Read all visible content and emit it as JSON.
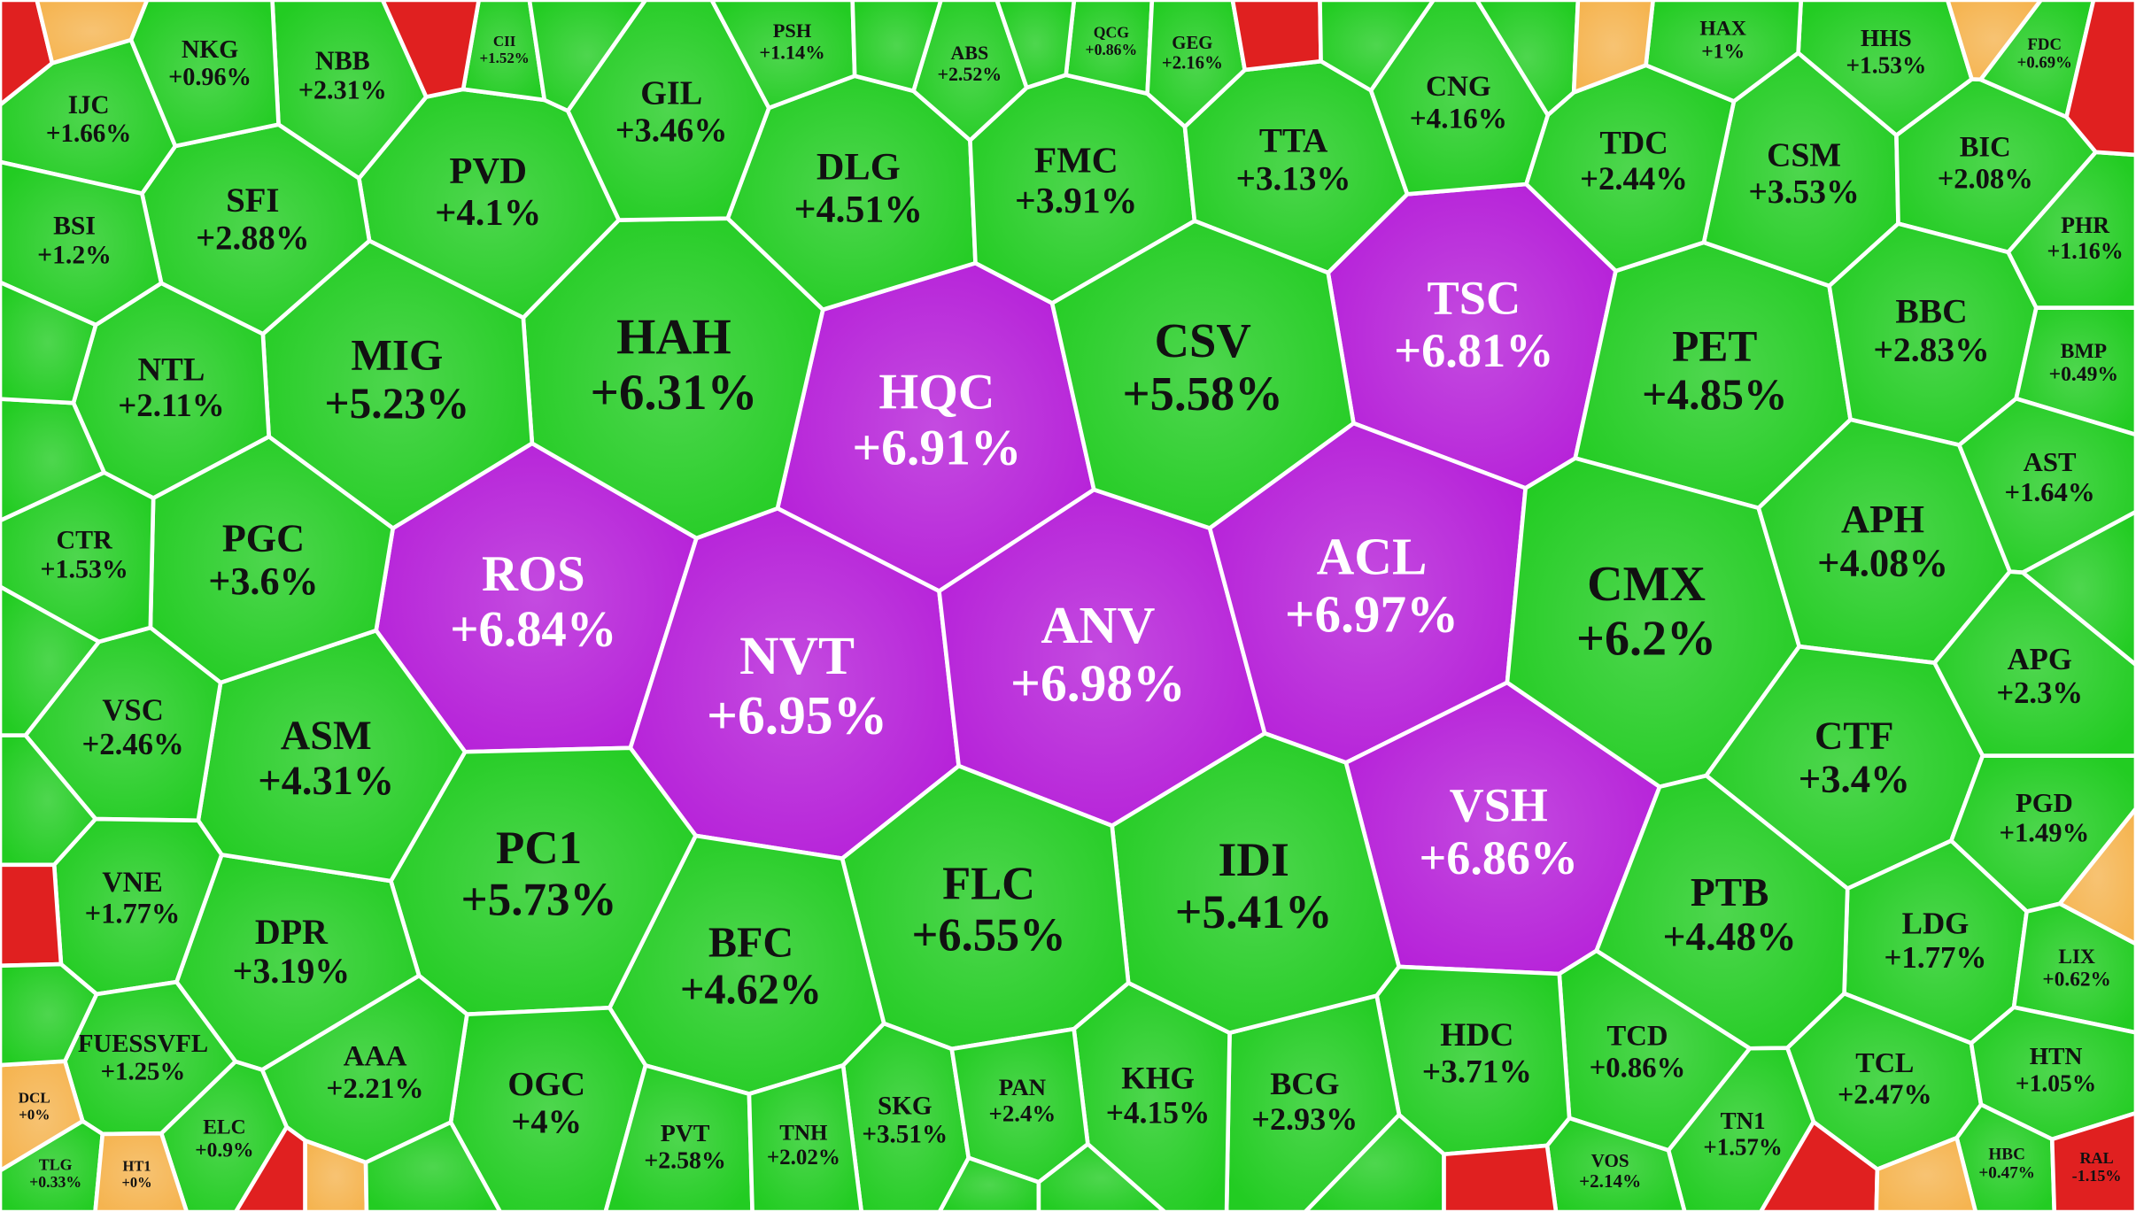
{
  "cells": [
    {
      "label": "HQC",
      "change": "+6.91%",
      "color": "#b51ed8"
    },
    {
      "label": "TSC",
      "change": "+6.81%",
      "color": "#b51ed8"
    },
    {
      "label": "ROS",
      "change": "+6.84%",
      "color": "#b51ed8"
    },
    {
      "label": "NVT",
      "change": "+6.95%",
      "color": "#b51ed8"
    },
    {
      "label": "ANV",
      "change": "+6.98%",
      "color": "#b51ed8"
    },
    {
      "label": "ACL",
      "change": "+6.97%",
      "color": "#b51ed8"
    },
    {
      "label": "VSH",
      "change": "+6.86%",
      "color": "#b51ed8"
    },
    {
      "label": "HAH",
      "change": "+6.31%",
      "color": "#22cc22"
    },
    {
      "label": "MIG",
      "change": "+5.23%",
      "color": "#22cc22"
    },
    {
      "label": "PVD",
      "change": "+4.1%",
      "color": "#22cc22"
    },
    {
      "label": "DLG",
      "change": "+4.51%",
      "color": "#22cc22"
    },
    {
      "label": "FMC",
      "change": "+3.91%",
      "color": "#22cc22"
    },
    {
      "label": "TTA",
      "change": "+3.13%",
      "color": "#22cc22"
    },
    {
      "label": "GIL",
      "change": "+3.46%",
      "color": "#22cc22"
    },
    {
      "label": "NBB",
      "change": "+2.31%",
      "color": "#22cc22"
    },
    {
      "label": "CSV",
      "change": "+5.58%",
      "color": "#22cc22"
    },
    {
      "label": "PET",
      "change": "+4.85%",
      "color": "#22cc22"
    },
    {
      "label": "CSM",
      "change": "+3.53%",
      "color": "#22cc22"
    },
    {
      "label": "TDC",
      "change": "+2.44%",
      "color": "#22cc22"
    },
    {
      "label": "CNG",
      "change": "+4.16%",
      "color": "#22cc22"
    },
    {
      "label": "BIC",
      "change": "+2.08%",
      "color": "#22cc22"
    },
    {
      "label": "HHS",
      "change": "+1.53%",
      "color": "#22cc22"
    },
    {
      "label": "FDC",
      "change": "+0.69%",
      "color": "#22cc22"
    },
    {
      "label": "HAX",
      "change": "+1%",
      "color": "#22cc22"
    },
    {
      "label": "BBC",
      "change": "+2.83%",
      "color": "#22cc22"
    },
    {
      "label": "PHR",
      "change": "+1.16%",
      "color": "#22cc22"
    },
    {
      "label": "BMP",
      "change": "+0.49%",
      "color": "#22cc22"
    },
    {
      "label": "CMX",
      "change": "+6.2%",
      "color": "#22cc22"
    },
    {
      "label": "APH",
      "change": "+4.08%",
      "color": "#22cc22"
    },
    {
      "label": "AST",
      "change": "+1.64%",
      "color": "#22cc22"
    },
    {
      "label": "APG",
      "change": "+2.3%",
      "color": "#22cc22"
    },
    {
      "label": "CTF",
      "change": "+3.4%",
      "color": "#22cc22"
    },
    {
      "label": "PGD",
      "change": "+1.49%",
      "color": "#22cc22"
    },
    {
      "label": "LDG",
      "change": "+1.77%",
      "color": "#22cc22"
    },
    {
      "label": "LIX",
      "change": "+0.62%",
      "color": "#22cc22"
    },
    {
      "label": "PTB",
      "change": "+4.48%",
      "color": "#22cc22"
    },
    {
      "label": "TCL",
      "change": "+2.47%",
      "color": "#22cc22"
    },
    {
      "label": "HTN",
      "change": "+1.05%",
      "color": "#22cc22"
    },
    {
      "label": "HBC",
      "change": "+0.47%",
      "color": "#22cc22"
    },
    {
      "label": "RAL",
      "change": "-1.15%",
      "color": "#e02020"
    },
    {
      "label": "TN1",
      "change": "+1.57%",
      "color": "#22cc22"
    },
    {
      "label": "TCD",
      "change": "+0.86%",
      "color": "#22cc22"
    },
    {
      "label": "VOS",
      "change": "+2.14%",
      "color": "#22cc22"
    },
    {
      "label": "HDC",
      "change": "+3.71%",
      "color": "#22cc22"
    },
    {
      "label": "BCG",
      "change": "+2.93%",
      "color": "#22cc22"
    },
    {
      "label": "KHG",
      "change": "+4.15%",
      "color": "#22cc22"
    },
    {
      "label": "IDI",
      "change": "+5.41%",
      "color": "#22cc22"
    },
    {
      "label": "FLC",
      "change": "+6.55%",
      "color": "#22cc22"
    },
    {
      "label": "BFC",
      "change": "+4.62%",
      "color": "#22cc22"
    },
    {
      "label": "SKG",
      "change": "+3.51%",
      "color": "#22cc22"
    },
    {
      "label": "PAN",
      "change": "+2.4%",
      "color": "#22cc22"
    },
    {
      "label": "PC1",
      "change": "+5.73%",
      "color": "#22cc22"
    },
    {
      "label": "OGC",
      "change": "+4%",
      "color": "#22cc22"
    },
    {
      "label": "AAA",
      "change": "+2.21%",
      "color": "#22cc22"
    },
    {
      "label": "PVT",
      "change": "+2.58%",
      "color": "#22cc22"
    },
    {
      "label": "TNH",
      "change": "+2.02%",
      "color": "#22cc22"
    },
    {
      "label": "DPR",
      "change": "+3.19%",
      "color": "#22cc22"
    },
    {
      "label": "ASM",
      "change": "+4.31%",
      "color": "#22cc22"
    },
    {
      "label": "PGC",
      "change": "+3.6%",
      "color": "#22cc22"
    },
    {
      "label": "VSC",
      "change": "+2.46%",
      "color": "#22cc22"
    },
    {
      "label": "CTR",
      "change": "+1.53%",
      "color": "#22cc22"
    },
    {
      "label": "NTL",
      "change": "+2.11%",
      "color": "#22cc22"
    },
    {
      "label": "SFI",
      "change": "+2.88%",
      "color": "#22cc22"
    },
    {
      "label": "IJC",
      "change": "+1.66%",
      "color": "#22cc22"
    },
    {
      "label": "NKG",
      "change": "+0.96%",
      "color": "#22cc22"
    },
    {
      "label": "BSI",
      "change": "+1.2%",
      "color": "#22cc22"
    },
    {
      "label": "VNE",
      "change": "+1.77%",
      "color": "#22cc22"
    },
    {
      "label": "FUESSVFL",
      "change": "+1.25%",
      "color": "#22cc22"
    },
    {
      "label": "ELC",
      "change": "+0.9%",
      "color": "#22cc22"
    },
    {
      "label": "TLG",
      "change": "+0.33%",
      "color": "#22cc22"
    },
    {
      "label": "DCL",
      "change": "+0%",
      "color": "#f5b450"
    },
    {
      "label": "HT1",
      "change": "+0%",
      "color": "#f5b450"
    },
    {
      "label": "CII",
      "change": "+1.52%",
      "color": "#22cc22"
    },
    {
      "label": "PSH",
      "change": "+1.14%",
      "color": "#22cc22"
    },
    {
      "label": "ABS",
      "change": "+2.52%",
      "color": "#22cc22"
    },
    {
      "label": "QCG",
      "change": "+0.86%",
      "color": "#22cc22"
    },
    {
      "label": "GEG",
      "change": "+2.16%",
      "color": "#22cc22"
    }
  ]
}
